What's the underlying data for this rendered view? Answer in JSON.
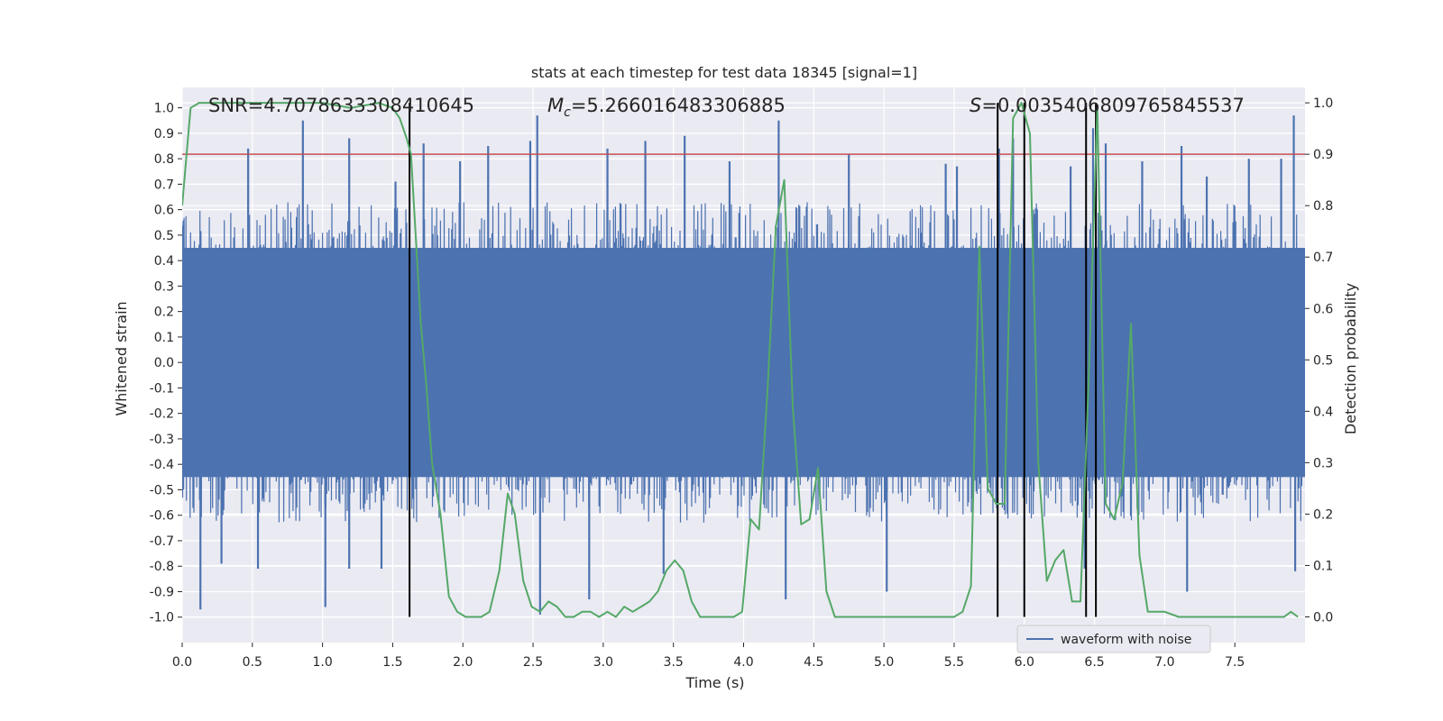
{
  "chart_data": {
    "type": "line",
    "title": "stats at each timestep for test data 18345 [signal=1]",
    "xlabel": "Time (s)",
    "ylabel_left": "Whitened strain",
    "ylabel_right": "Detection probability",
    "xlim": [
      0.0,
      8.0
    ],
    "ylim_left": [
      -1.1,
      1.08
    ],
    "ylim_right": [
      -0.05,
      1.03
    ],
    "x_ticks": [
      "0.0",
      "0.5",
      "1.0",
      "1.5",
      "2.0",
      "2.5",
      "3.0",
      "3.5",
      "4.0",
      "4.5",
      "5.0",
      "5.5",
      "6.0",
      "6.5",
      "7.0",
      "7.5"
    ],
    "y_left_ticks": [
      "1.0",
      "0.9",
      "0.8",
      "0.7",
      "0.6",
      "0.5",
      "0.4",
      "0.3",
      "0.2",
      "0.1",
      "0.0",
      "-0.1",
      "-0.2",
      "-0.3",
      "-0.4",
      "-0.5",
      "-0.6",
      "-0.7",
      "-0.8",
      "-0.9",
      "-1.0"
    ],
    "y_right_ticks": [
      "1.0",
      "0.9",
      "0.8",
      "0.7",
      "0.6",
      "0.5",
      "0.4",
      "0.3",
      "0.2",
      "0.1",
      "0.0"
    ],
    "annotations": {
      "snr_prefix": "SNR=",
      "snr": "4.7078633308410645",
      "mc_symbol": "M",
      "mc_subscript": "c",
      "mc_value": "=5.266016483306885",
      "s_symbol": "S",
      "s_value": "=0.0035406809765845537"
    },
    "threshold": {
      "axis": "right",
      "value": 0.9,
      "color": "#c44e52"
    },
    "vertical_lines": [
      1.62,
      5.81,
      6.0,
      6.44,
      6.51
    ],
    "waveform": {
      "name": "waveform with noise",
      "color": "#4c72b0",
      "envelope_range": [
        -0.45,
        0.45
      ],
      "spikes": [
        {
          "x": 0.13,
          "y": -0.97
        },
        {
          "x": 0.28,
          "y": -0.79
        },
        {
          "x": 0.47,
          "y": 0.84
        },
        {
          "x": 0.54,
          "y": -0.81
        },
        {
          "x": 0.86,
          "y": 0.95
        },
        {
          "x": 1.02,
          "y": -0.96
        },
        {
          "x": 1.19,
          "y": 0.88
        },
        {
          "x": 1.19,
          "y": -0.81
        },
        {
          "x": 1.42,
          "y": -0.81
        },
        {
          "x": 1.52,
          "y": 0.71
        },
        {
          "x": 1.72,
          "y": 0.86
        },
        {
          "x": 1.98,
          "y": 0.79
        },
        {
          "x": 2.18,
          "y": 0.85
        },
        {
          "x": 2.48,
          "y": 0.87
        },
        {
          "x": 2.53,
          "y": 0.97
        },
        {
          "x": 2.55,
          "y": -0.99
        },
        {
          "x": 2.9,
          "y": -0.93
        },
        {
          "x": 3.03,
          "y": 0.84
        },
        {
          "x": 3.3,
          "y": 0.87
        },
        {
          "x": 3.43,
          "y": -0.83
        },
        {
          "x": 3.58,
          "y": 0.89
        },
        {
          "x": 3.9,
          "y": 0.79
        },
        {
          "x": 4.25,
          "y": 0.95
        },
        {
          "x": 4.3,
          "y": -0.93
        },
        {
          "x": 4.75,
          "y": 0.82
        },
        {
          "x": 5.02,
          "y": -0.9
        },
        {
          "x": 5.44,
          "y": 0.78
        },
        {
          "x": 5.52,
          "y": 0.77
        },
        {
          "x": 5.82,
          "y": 0.84
        },
        {
          "x": 5.92,
          "y": 0.88
        },
        {
          "x": 6.33,
          "y": 0.77
        },
        {
          "x": 6.43,
          "y": -0.81
        },
        {
          "x": 6.49,
          "y": 0.92
        },
        {
          "x": 6.58,
          "y": 0.86
        },
        {
          "x": 6.84,
          "y": 0.79
        },
        {
          "x": 7.12,
          "y": 0.85
        },
        {
          "x": 7.16,
          "y": -0.9
        },
        {
          "x": 7.3,
          "y": 0.73
        },
        {
          "x": 7.6,
          "y": 0.8
        },
        {
          "x": 7.83,
          "y": 0.8
        },
        {
          "x": 7.92,
          "y": 0.97
        },
        {
          "x": 7.93,
          "y": -0.82
        }
      ]
    },
    "probability": {
      "name": "detection probability",
      "color": "#55a868",
      "x": [
        0.0,
        0.06,
        0.12,
        0.2,
        0.3,
        0.45,
        0.6,
        0.8,
        1.0,
        1.2,
        1.4,
        1.5,
        1.55,
        1.6,
        1.63,
        1.7,
        1.74,
        1.78,
        1.84,
        1.9,
        1.96,
        2.02,
        2.07,
        2.13,
        2.19,
        2.26,
        2.32,
        2.37,
        2.43,
        2.49,
        2.55,
        2.61,
        2.67,
        2.73,
        2.79,
        2.85,
        2.91,
        2.97,
        3.03,
        3.09,
        3.15,
        3.21,
        3.27,
        3.33,
        3.39,
        3.45,
        3.51,
        3.57,
        3.63,
        3.69,
        3.75,
        3.81,
        3.87,
        3.93,
        3.99,
        4.05,
        4.11,
        4.17,
        4.23,
        4.29,
        4.35,
        4.41,
        4.47,
        4.53,
        4.59,
        4.65,
        4.71,
        4.8,
        5.0,
        5.2,
        5.4,
        5.5,
        5.56,
        5.62,
        5.68,
        5.74,
        5.8,
        5.86,
        5.92,
        5.98,
        6.04,
        6.1,
        6.16,
        6.22,
        6.28,
        6.34,
        6.4,
        6.46,
        6.52,
        6.58,
        6.64,
        6.7,
        6.76,
        6.82,
        6.88,
        6.94,
        7.0,
        7.1,
        7.3,
        7.5,
        7.7,
        7.8,
        7.85,
        7.9,
        7.95
      ],
      "y": [
        0.8,
        0.99,
        1.0,
        1.0,
        1.0,
        1.0,
        1.0,
        1.0,
        1.0,
        0.99,
        1.0,
        0.99,
        0.97,
        0.93,
        0.9,
        0.57,
        0.45,
        0.3,
        0.2,
        0.04,
        0.01,
        0.0,
        0.0,
        0.0,
        0.01,
        0.09,
        0.24,
        0.2,
        0.07,
        0.02,
        0.01,
        0.03,
        0.02,
        0.0,
        0.0,
        0.01,
        0.01,
        0.0,
        0.01,
        0.0,
        0.02,
        0.01,
        0.02,
        0.03,
        0.05,
        0.09,
        0.11,
        0.09,
        0.03,
        0.0,
        0.0,
        0.0,
        0.0,
        0.0,
        0.01,
        0.19,
        0.17,
        0.44,
        0.76,
        0.85,
        0.41,
        0.18,
        0.19,
        0.29,
        0.05,
        0.0,
        0.0,
        0.0,
        0.0,
        0.0,
        0.0,
        0.0,
        0.01,
        0.06,
        0.72,
        0.25,
        0.22,
        0.22,
        0.97,
        1.0,
        0.94,
        0.3,
        0.07,
        0.11,
        0.13,
        0.03,
        0.03,
        0.47,
        0.99,
        0.22,
        0.19,
        0.26,
        0.57,
        0.12,
        0.01,
        0.01,
        0.01,
        0.0,
        0.0,
        0.0,
        0.0,
        0.0,
        0.0,
        0.01,
        0.0
      ]
    },
    "legend": {
      "entries": [
        "waveform with noise"
      ],
      "location": "lower center-right"
    }
  }
}
